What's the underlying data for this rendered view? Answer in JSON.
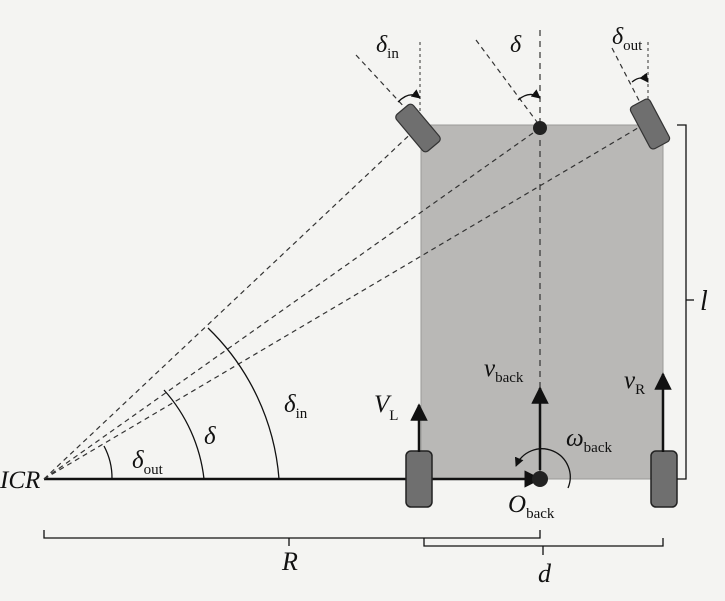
{
  "labels": {
    "icr": "ICR",
    "delta_in_top": "δ",
    "delta_in_top_sub": "in",
    "delta_top": "δ",
    "delta_out_top": "δ",
    "delta_out_top_sub": "out",
    "delta_out": "δ",
    "delta_out_sub": "out",
    "delta_mid": "δ",
    "delta_in": "δ",
    "delta_in_sub": "in",
    "v_left": "V",
    "v_left_sub": "L",
    "v_back": "v",
    "v_back_sub": "back",
    "v_right": "v",
    "v_right_sub": "R",
    "omega_back": "ω",
    "omega_back_sub": "back",
    "o_back": "O",
    "o_back_sub": "back",
    "length": "l",
    "radius": "R",
    "width": "d"
  },
  "colors": {
    "body": "#b9b8b6",
    "wheel": "#6f6f6f",
    "line": "#111111"
  }
}
